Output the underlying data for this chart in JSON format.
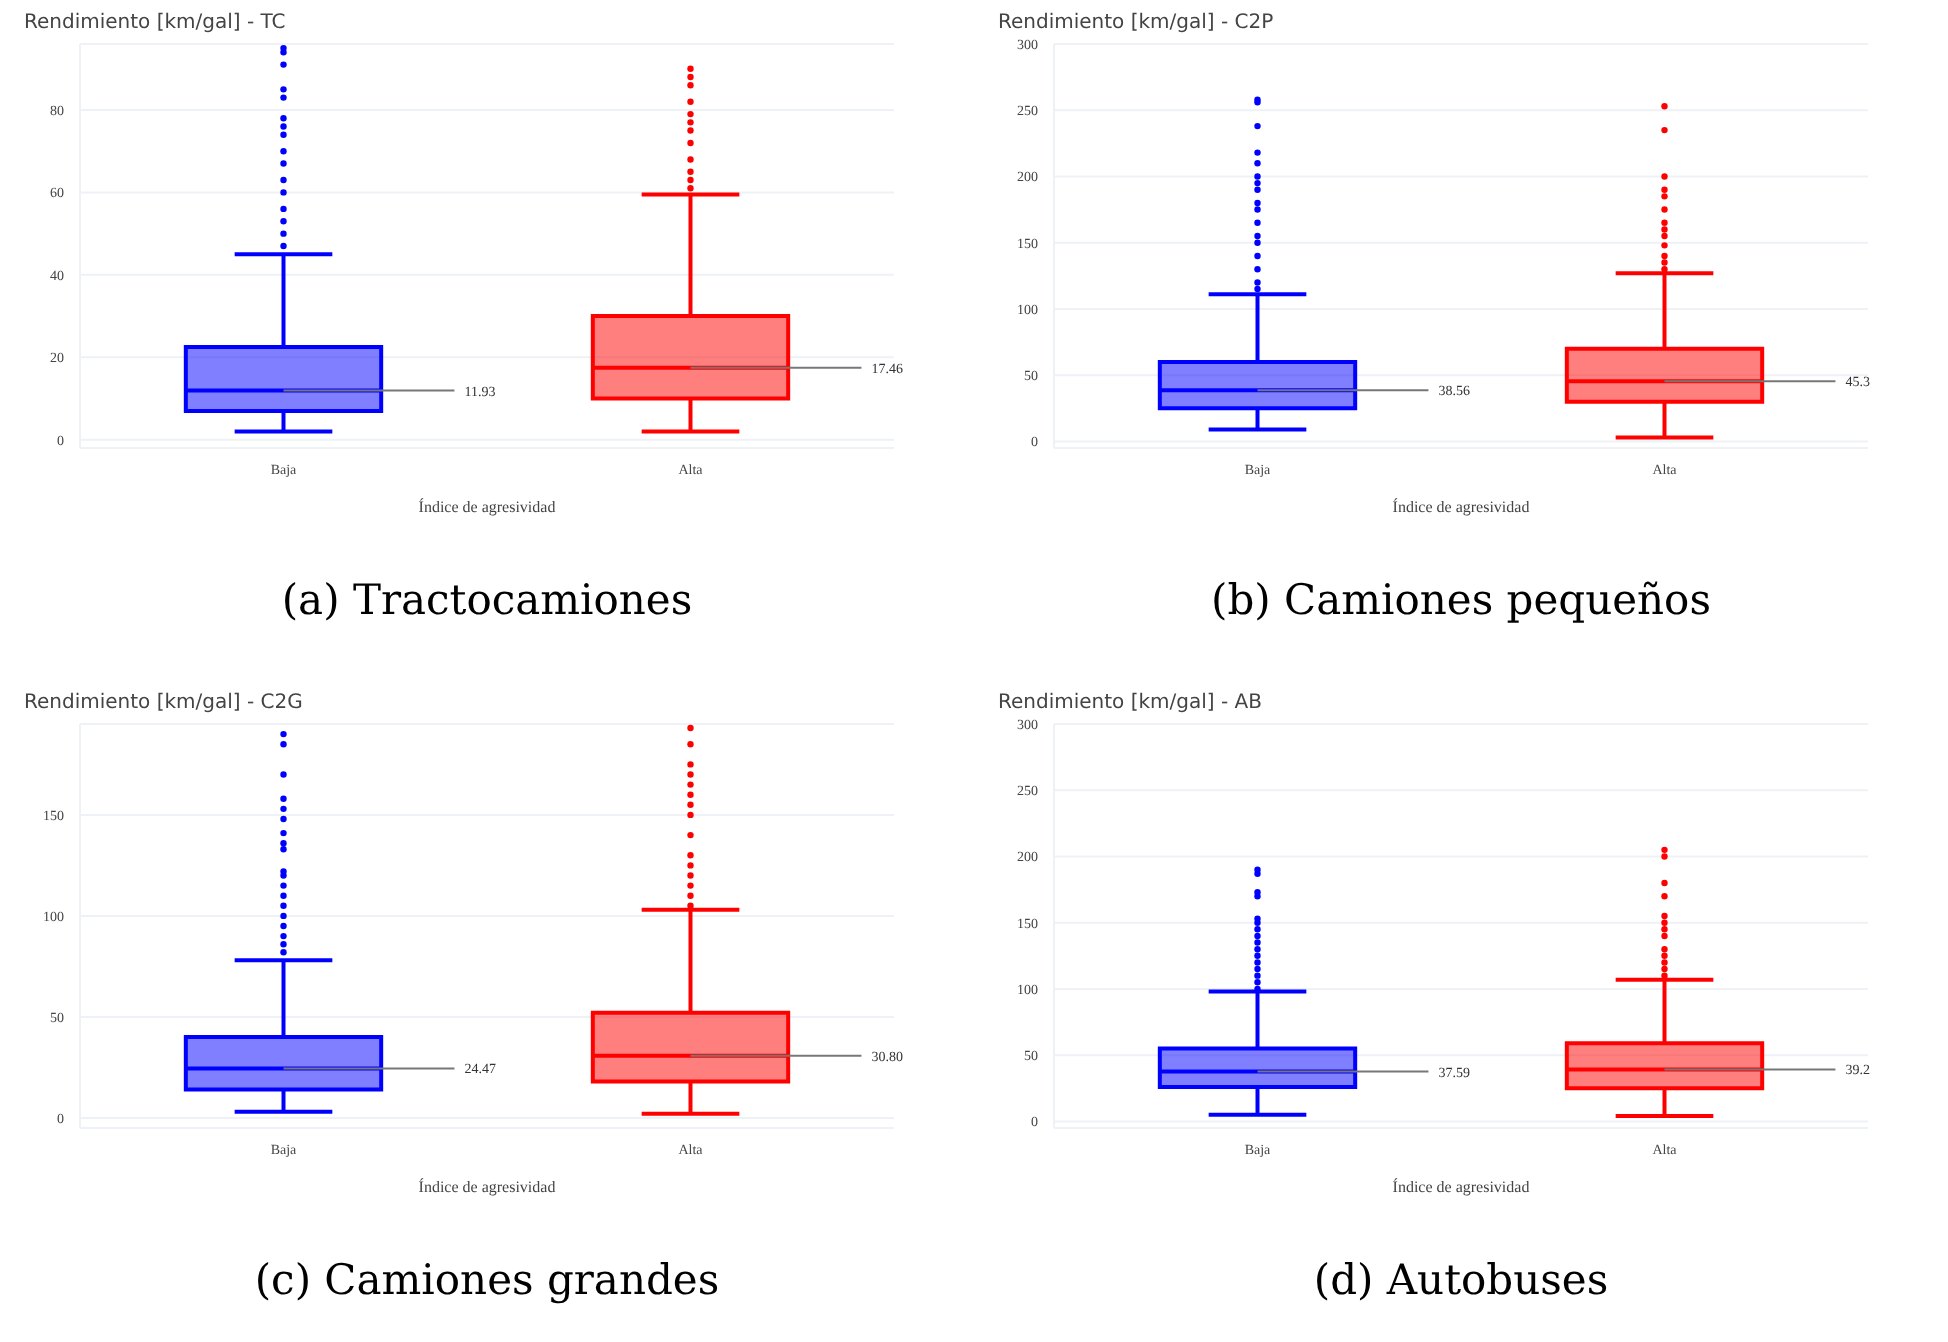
{
  "chart_data": [
    {
      "type": "box",
      "title": "Rendimiento [km/gal] - TC",
      "xlabel": "Índice de agresividad",
      "categories": [
        "Baja",
        "Alta"
      ],
      "colors": [
        "#0000ff",
        "#ff0000"
      ],
      "grid": "y",
      "ylim": [
        -2,
        96
      ],
      "yticks": [
        0,
        20,
        40,
        60,
        80
      ],
      "boxes": [
        {
          "low": 2,
          "q1": 7,
          "median": 11.93,
          "q3": 22.5,
          "high": 45,
          "outliers": [
            47,
            50,
            53,
            56,
            60,
            63,
            67,
            70,
            74,
            76,
            78,
            83,
            85,
            91,
            94,
            95
          ]
        },
        {
          "low": 2,
          "q1": 10,
          "median": 17.46,
          "q3": 30,
          "high": 59.5,
          "outliers": [
            61,
            63,
            65,
            68,
            72,
            75,
            77,
            79,
            82,
            86,
            88,
            90
          ]
        }
      ],
      "annotations": [
        {
          "text": "11.93",
          "x": "Baja",
          "y": 11.93
        },
        {
          "text": "17.46",
          "x": "Alta",
          "y": 17.46
        },
        "(a) Tractocamiones"
      ]
    },
    {
      "type": "box",
      "title": "Rendimiento [km/gal] - C2P",
      "xlabel": "Índice de agresividad",
      "categories": [
        "Baja",
        "Alta"
      ],
      "colors": [
        "#0000ff",
        "#ff0000"
      ],
      "grid": "y",
      "ylim": [
        -5,
        300
      ],
      "yticks": [
        0,
        50,
        100,
        150,
        200,
        250,
        300
      ],
      "boxes": [
        {
          "low": 9,
          "q1": 25,
          "median": 38.56,
          "q3": 60,
          "high": 111,
          "outliers": [
            115,
            120,
            130,
            140,
            150,
            155,
            165,
            175,
            180,
            190,
            195,
            200,
            210,
            218,
            238,
            256,
            258
          ]
        },
        {
          "low": 3,
          "q1": 30,
          "median": 45.3,
          "q3": 70,
          "high": 127,
          "outliers": [
            130,
            135,
            140,
            148,
            155,
            160,
            165,
            175,
            185,
            190,
            200,
            235,
            253
          ]
        }
      ],
      "annotations": [
        {
          "text": "38.56",
          "x": "Baja",
          "y": 38.56
        },
        {
          "text": "45.3",
          "x": "Alta",
          "y": 45.3
        },
        "(b) Camiones pequeños"
      ]
    },
    {
      "type": "box",
      "title": "Rendimiento [km/gal] - C2G",
      "xlabel": "Índice de agresividad",
      "categories": [
        "Baja",
        "Alta"
      ],
      "colors": [
        "#0000ff",
        "#ff0000"
      ],
      "grid": "y",
      "ylim": [
        -5,
        195
      ],
      "yticks": [
        0,
        50,
        100,
        150
      ],
      "boxes": [
        {
          "low": 3,
          "q1": 14,
          "median": 24.47,
          "q3": 40,
          "high": 78,
          "outliers": [
            82,
            86,
            90,
            95,
            100,
            105,
            110,
            115,
            120,
            122,
            133,
            136,
            141,
            148,
            153,
            158,
            170,
            185,
            190
          ]
        },
        {
          "low": 2,
          "q1": 18,
          "median": 30.8,
          "q3": 52,
          "high": 103,
          "outliers": [
            105,
            110,
            115,
            120,
            125,
            130,
            140,
            150,
            155,
            160,
            165,
            170,
            175,
            185,
            193
          ]
        }
      ],
      "annotations": [
        {
          "text": "24.47",
          "x": "Baja",
          "y": 24.47
        },
        {
          "text": "30.80",
          "x": "Alta",
          "y": 30.8
        },
        "(c) Camiones grandes"
      ]
    },
    {
      "type": "box",
      "title": "Rendimiento [km/gal] - AB",
      "xlabel": "Índice de agresividad",
      "categories": [
        "Baja",
        "Alta"
      ],
      "colors": [
        "#0000ff",
        "#ff0000"
      ],
      "grid": "y",
      "ylim": [
        -5,
        300
      ],
      "yticks": [
        0,
        50,
        100,
        150,
        200,
        250,
        300
      ],
      "boxes": [
        {
          "low": 5,
          "q1": 26,
          "median": 37.59,
          "q3": 55,
          "high": 98,
          "outliers": [
            100,
            105,
            110,
            115,
            120,
            125,
            130,
            135,
            140,
            145,
            150,
            153,
            170,
            173,
            187,
            190
          ]
        },
        {
          "low": 4,
          "q1": 25,
          "median": 39.2,
          "q3": 59,
          "high": 107,
          "outliers": [
            110,
            115,
            120,
            125,
            130,
            140,
            145,
            150,
            155,
            170,
            180,
            200,
            205
          ]
        }
      ],
      "annotations": [
        {
          "text": "37.59",
          "x": "Baja",
          "y": 37.59
        },
        {
          "text": "39.2",
          "x": "Alta",
          "y": 39.2
        },
        "(d) Autobuses"
      ]
    }
  ]
}
